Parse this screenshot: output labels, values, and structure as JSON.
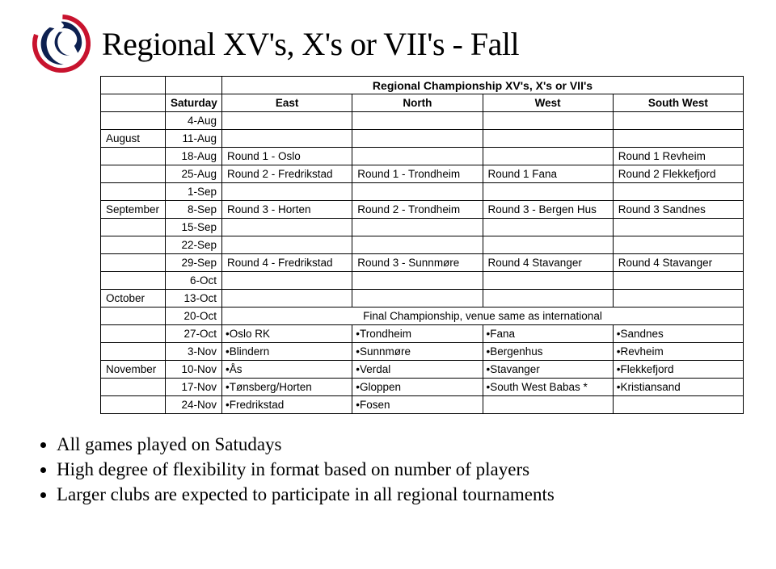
{
  "page_title": "Regional XV's, X's or VII's - Fall",
  "table": {
    "super_header": "Regional Championship XV's, X's or VII's",
    "saturday_label": "Saturday",
    "region_headers": [
      "East",
      "North",
      "West",
      "South West"
    ],
    "rows": [
      {
        "month": "",
        "date": "4-Aug",
        "cells": [
          "",
          "",
          "",
          ""
        ]
      },
      {
        "month": "August",
        "date": "11-Aug",
        "cells": [
          "",
          "",
          "",
          ""
        ]
      },
      {
        "month": "",
        "date": "18-Aug",
        "cells": [
          "Round 1 - Oslo",
          "",
          "",
          "Round 1 Revheim"
        ]
      },
      {
        "month": "",
        "date": "25-Aug",
        "cells": [
          "Round 2 - Fredrikstad",
          "Round 1 - Trondheim",
          "Round 1 Fana",
          "Round 2 Flekkefjord"
        ]
      },
      {
        "month": "",
        "date": "1-Sep",
        "cells": [
          "",
          "",
          "",
          ""
        ]
      },
      {
        "month": "September",
        "date": "8-Sep",
        "cells": [
          "Round 3 - Horten",
          "Round 2 - Trondheim",
          "Round 3 - Bergen Hus",
          "Round 3 Sandnes"
        ]
      },
      {
        "month": "",
        "date": "15-Sep",
        "cells": [
          "",
          "",
          "",
          ""
        ]
      },
      {
        "month": "",
        "date": "22-Sep",
        "cells": [
          "",
          "",
          "",
          ""
        ]
      },
      {
        "month": "",
        "date": "29-Sep",
        "cells": [
          "Round 4 - Fredrikstad",
          "Round 3 - Sunnmøre",
          "Round 4 Stavanger",
          "Round 4 Stavanger"
        ]
      },
      {
        "month": "",
        "date": "6-Oct",
        "cells": [
          "",
          "",
          "",
          ""
        ]
      },
      {
        "month": "October",
        "date": "13-Oct",
        "cells": [
          "",
          "",
          "",
          ""
        ]
      },
      {
        "month": "",
        "date": "20-Oct",
        "final_span": "Final Championship, venue same as international"
      },
      {
        "month": "",
        "date": "27-Oct",
        "bullets": [
          "Oslo RK",
          "Trondheim",
          "Fana",
          "Sandnes"
        ]
      },
      {
        "month": "",
        "date": "3-Nov",
        "bullets": [
          "Blindern",
          "Sunnmøre",
          "Bergenhus",
          "Revheim"
        ]
      },
      {
        "month": "November",
        "date": "10-Nov",
        "bullets": [
          "Ås",
          "Verdal",
          "Stavanger",
          "Flekkefjord"
        ]
      },
      {
        "month": "",
        "date": "17-Nov",
        "bullets": [
          "Tønsberg/Horten",
          "Gloppen",
          "South West Babas *",
          "Kristiansand"
        ]
      },
      {
        "month": "",
        "date": "24-Nov",
        "bullets": [
          "Fredrikstad",
          "Fosen",
          "",
          ""
        ]
      }
    ]
  },
  "notes": [
    "All games played on Satudays",
    "High degree of flexibility in format based on number of players",
    "Larger clubs are expected to participate in all regional tournaments"
  ],
  "colors": {
    "logo_ring": "#c8132e",
    "logo_body": "#0d2050",
    "text": "#000000",
    "background": "#ffffff",
    "border": "#000000"
  },
  "fonts": {
    "title_family": "Times New Roman",
    "title_size_pt": 30,
    "table_family": "Arial",
    "table_size_pt": 10,
    "notes_family": "Times New Roman",
    "notes_size_pt": 17
  }
}
